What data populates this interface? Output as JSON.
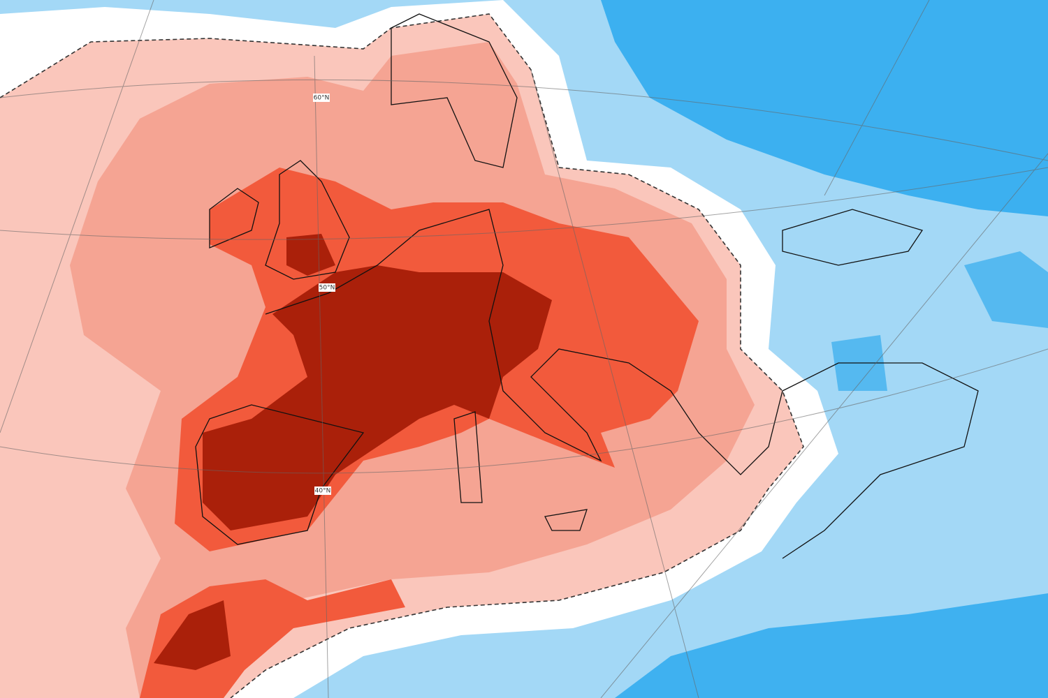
{
  "map": {
    "latitude_labels": [
      "60°N",
      "50°N",
      "40°N"
    ]
  }
}
